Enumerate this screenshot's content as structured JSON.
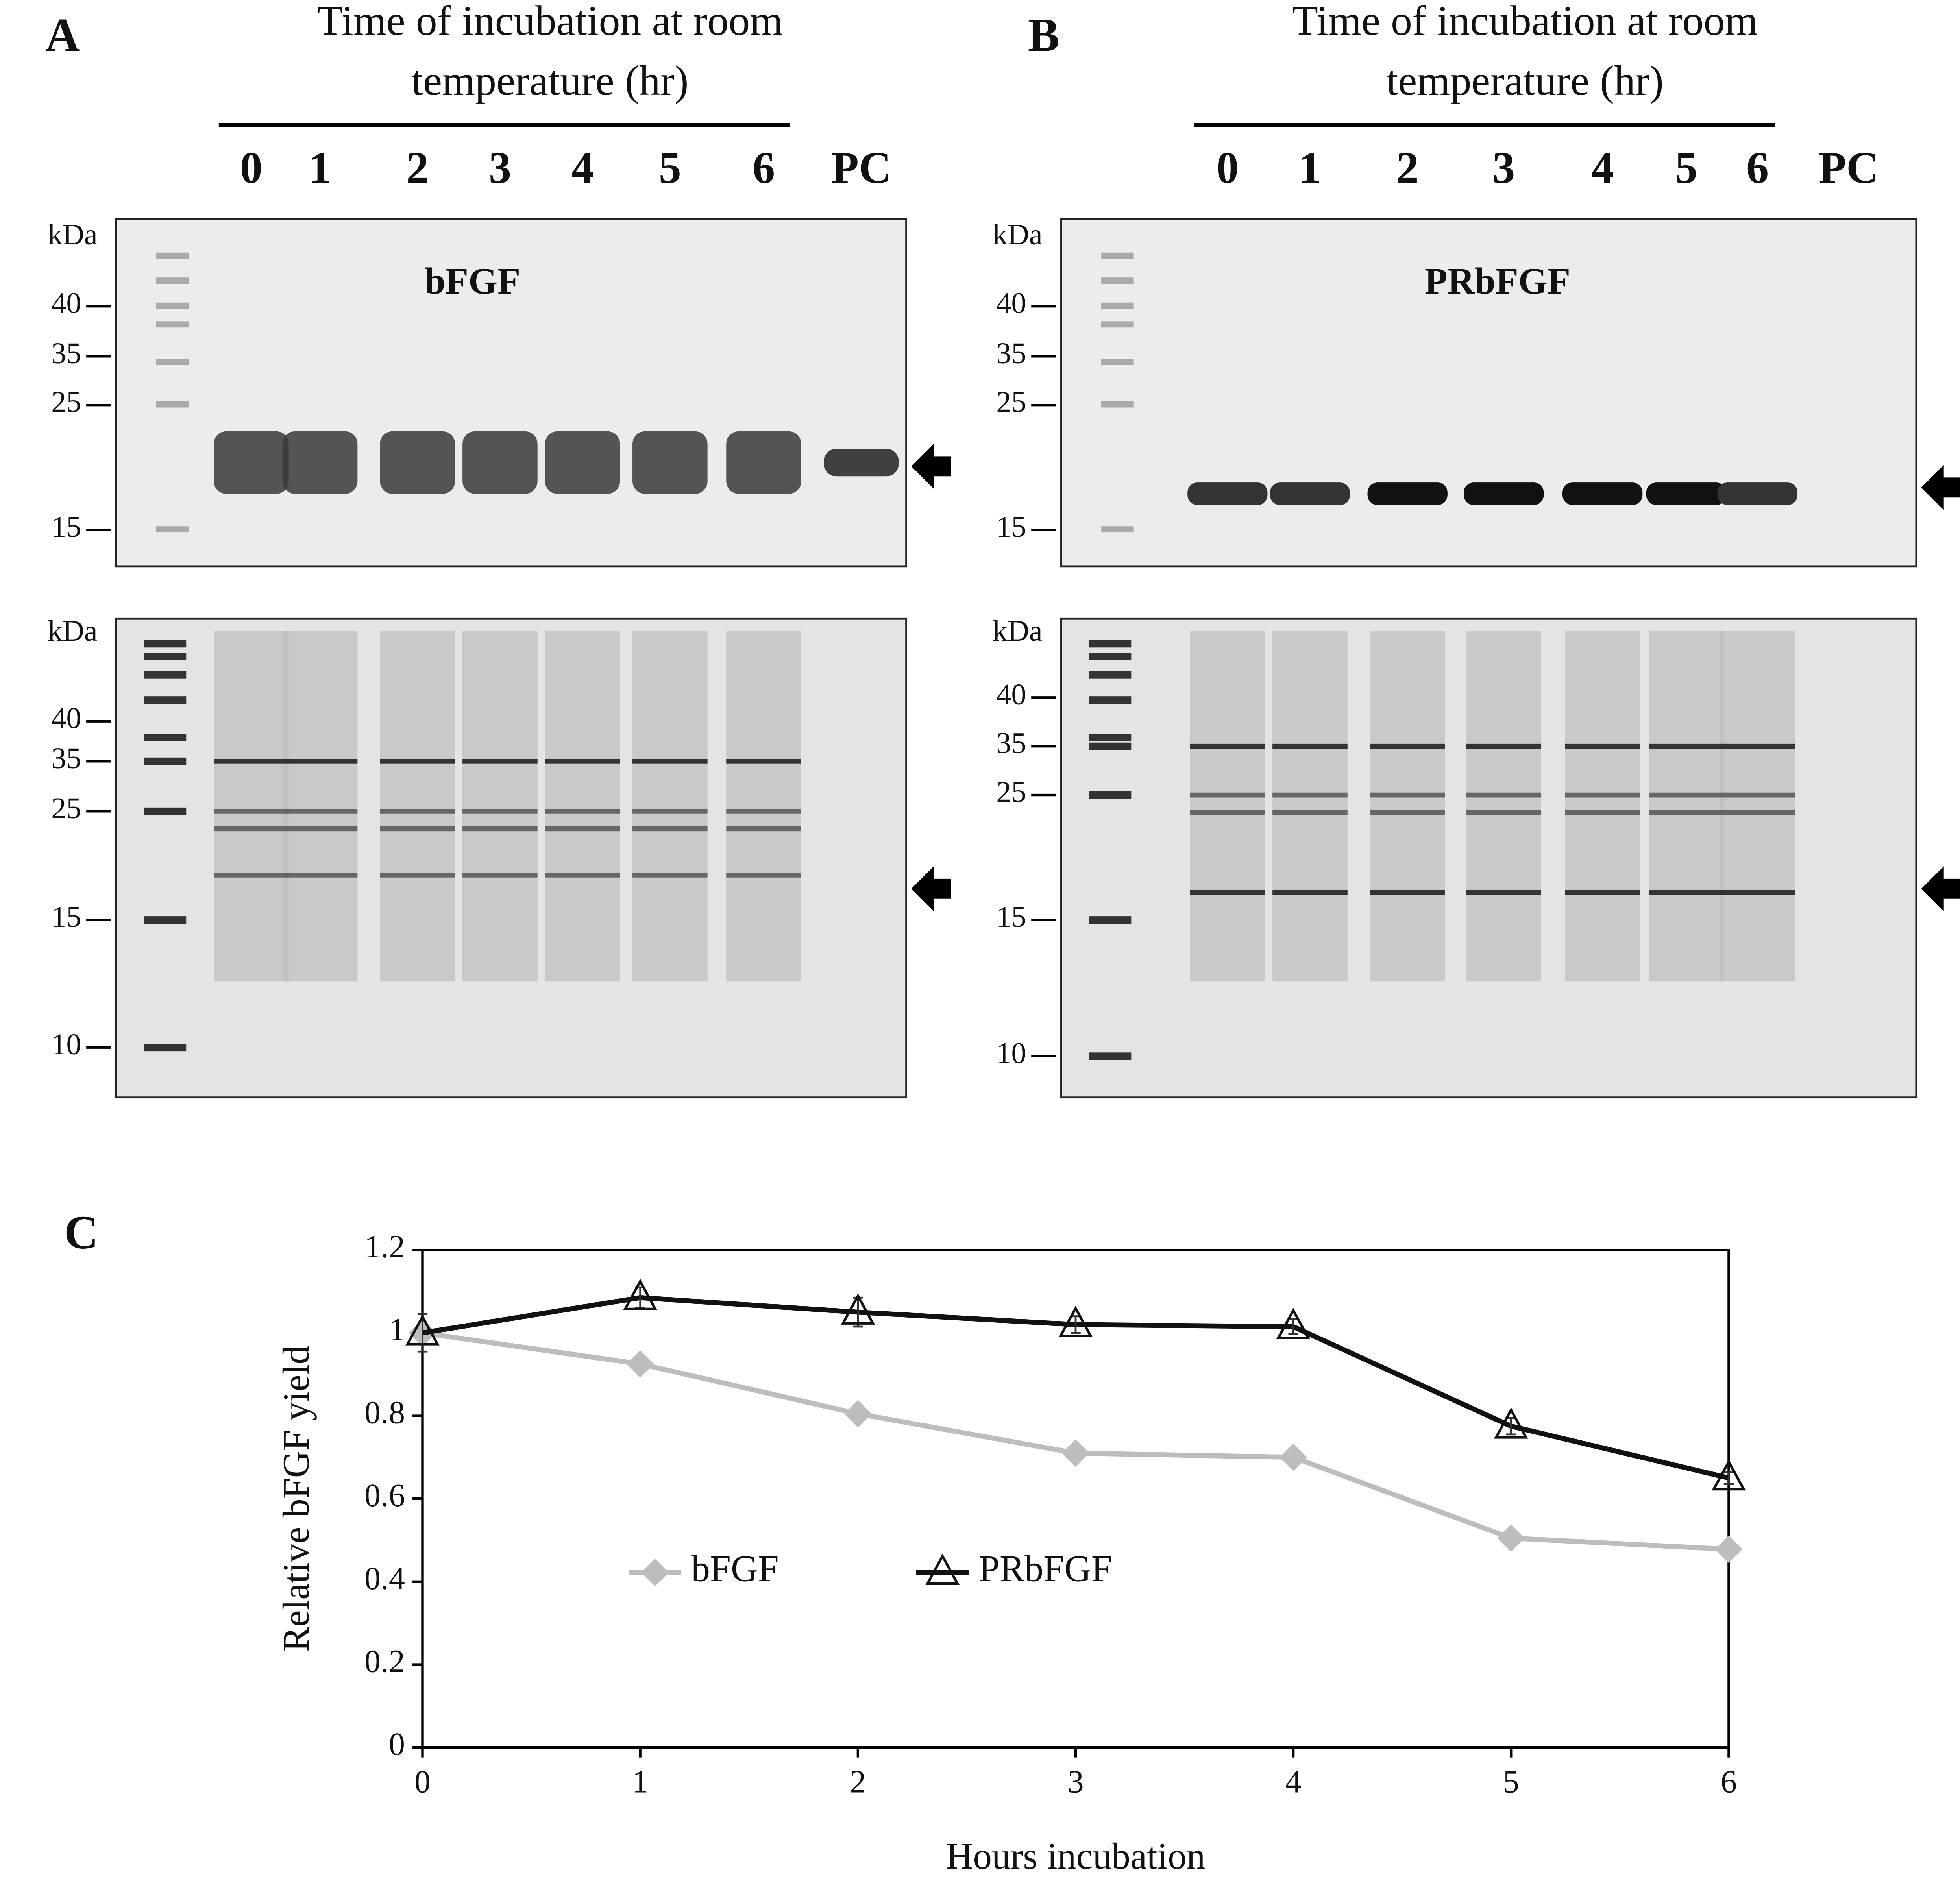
{
  "panel_a": {
    "letter": "A",
    "heading": [
      "Time of incubation at room",
      "temperature (hr)"
    ],
    "lanes": [
      "0",
      "1",
      "2",
      "3",
      "4",
      "5",
      "6",
      "PC"
    ],
    "blot_label": "bFGF",
    "unit": "kDa",
    "blot_markers": [
      "40",
      "35",
      "25",
      "15"
    ],
    "gel_markers": [
      "40",
      "35",
      "25",
      "15",
      "10"
    ]
  },
  "panel_b": {
    "letter": "B",
    "heading": [
      "Time of incubation at room",
      "temperature (hr)"
    ],
    "lanes": [
      "0",
      "1",
      "2",
      "3",
      "4",
      "5",
      "6",
      "PC"
    ],
    "blot_label": "PRbFGF",
    "unit": "kDa",
    "blot_markers": [
      "40",
      "35",
      "25",
      "15"
    ],
    "gel_markers": [
      "40",
      "35",
      "25",
      "15",
      "10"
    ]
  },
  "chart_data": {
    "type": "line",
    "letter": "C",
    "xlabel": "Hours incubation",
    "ylabel": "Relative bFGF yield",
    "x": [
      0,
      1,
      2,
      3,
      4,
      5,
      6
    ],
    "xlim": [
      0,
      6
    ],
    "xticks": [
      0,
      1,
      2,
      3,
      4,
      5,
      6
    ],
    "ylim": [
      0,
      1.2
    ],
    "yticks": [
      0,
      0.2,
      0.4,
      0.6,
      0.8,
      1,
      1.2
    ],
    "legend": "lower left",
    "series": [
      {
        "name": "bFGF",
        "color": "#bdbdbd",
        "marker": "diamond",
        "values": [
          1,
          0.925,
          0.805,
          0.71,
          0.7,
          0.505,
          0.478
        ],
        "errors": [
          0.01,
          0.012,
          0.006,
          0.008,
          0.018,
          0.006,
          0.006
        ]
      },
      {
        "name": "PRbFGF",
        "color": "#111111",
        "marker": "triangle",
        "values": [
          1,
          1.085,
          1.05,
          1.02,
          1.015,
          0.775,
          0.65
        ],
        "errors": [
          0.045,
          0.025,
          0.035,
          0.02,
          0.018,
          0.02,
          0.015
        ]
      }
    ]
  }
}
